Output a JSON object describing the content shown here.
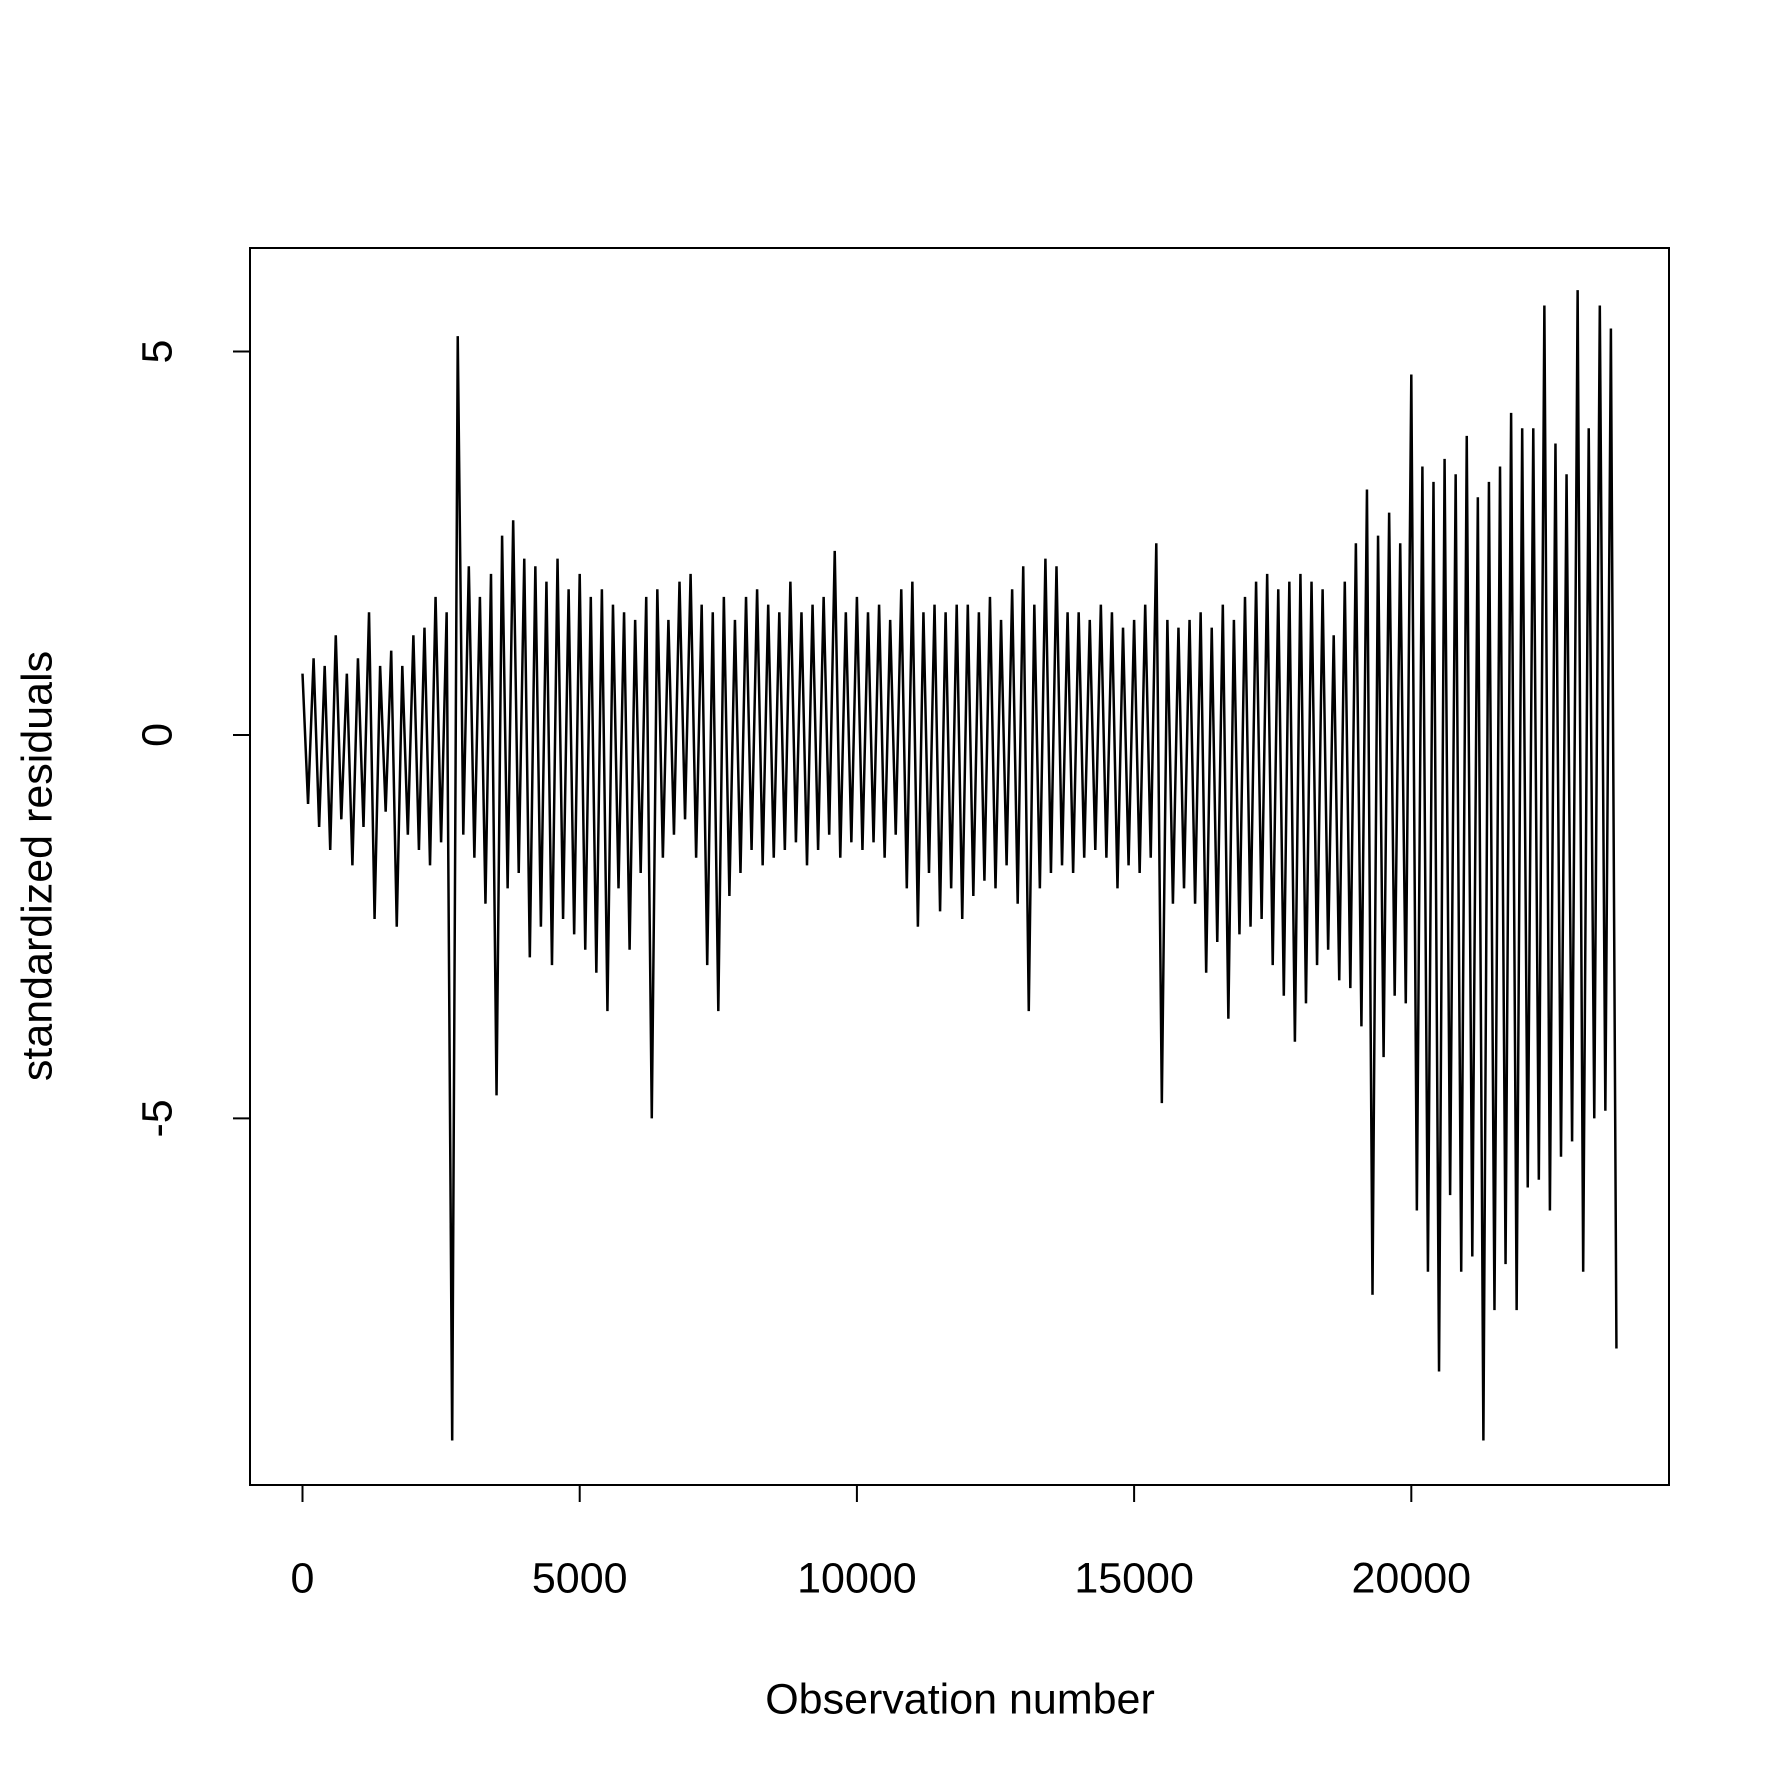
{
  "chart_data": {
    "type": "line",
    "x_label": "Observation number",
    "y_label": "standardized residuals",
    "color": "#000000",
    "xlim": [
      -947,
      24648
    ],
    "xticks": [
      0,
      5000,
      10000,
      15000,
      20000
    ],
    "ylim": [
      -9.78,
      6.35
    ],
    "yticks": [
      -5,
      0,
      5
    ],
    "grid": false,
    "x": [
      0,
      100,
      200,
      300,
      400,
      500,
      600,
      700,
      800,
      900,
      1000,
      1100,
      1200,
      1300,
      1400,
      1500,
      1600,
      1700,
      1800,
      1900,
      2000,
      2100,
      2200,
      2300,
      2400,
      2500,
      2600,
      2700,
      2800,
      2900,
      3000,
      3100,
      3200,
      3300,
      3400,
      3500,
      3600,
      3700,
      3800,
      3900,
      4000,
      4100,
      4200,
      4300,
      4400,
      4500,
      4600,
      4700,
      4800,
      4900,
      5000,
      5100,
      5200,
      5300,
      5400,
      5500,
      5600,
      5700,
      5800,
      5900,
      6000,
      6100,
      6200,
      6300,
      6400,
      6500,
      6600,
      6700,
      6800,
      6900,
      7000,
      7100,
      7200,
      7300,
      7400,
      7500,
      7600,
      7700,
      7800,
      7900,
      8000,
      8100,
      8200,
      8300,
      8400,
      8500,
      8600,
      8700,
      8800,
      8900,
      9000,
      9100,
      9200,
      9300,
      9400,
      9500,
      9600,
      9700,
      9800,
      9900,
      10000,
      10100,
      10200,
      10300,
      10400,
      10500,
      10600,
      10700,
      10800,
      10900,
      11000,
      11100,
      11200,
      11300,
      11400,
      11500,
      11600,
      11700,
      11800,
      11900,
      12000,
      12100,
      12200,
      12300,
      12400,
      12500,
      12600,
      12700,
      12800,
      12900,
      13000,
      13100,
      13200,
      13300,
      13400,
      13500,
      13600,
      13700,
      13800,
      13900,
      14000,
      14100,
      14200,
      14300,
      14400,
      14500,
      14600,
      14700,
      14800,
      14900,
      15000,
      15100,
      15200,
      15300,
      15400,
      15500,
      15600,
      15700,
      15800,
      15900,
      16000,
      16100,
      16200,
      16300,
      16400,
      16500,
      16600,
      16700,
      16800,
      16900,
      17000,
      17100,
      17200,
      17300,
      17400,
      17500,
      17600,
      17700,
      17800,
      17900,
      18000,
      18100,
      18200,
      18300,
      18400,
      18500,
      18600,
      18700,
      18800,
      18900,
      19000,
      19100,
      19200,
      19300,
      19400,
      19500,
      19600,
      19700,
      19800,
      19900,
      20000,
      20100,
      20200,
      20300,
      20400,
      20500,
      20600,
      20700,
      20800,
      20900,
      21000,
      21100,
      21200,
      21300,
      21400,
      21500,
      21600,
      21700,
      21800,
      21900,
      22000,
      22100,
      22200,
      22300,
      22400,
      22500,
      22600,
      22700,
      22800,
      22900,
      23000,
      23100,
      23200,
      23300,
      23400,
      23500,
      23600,
      23700
    ],
    "values": [
      0.8,
      -0.9,
      1.0,
      -1.2,
      0.9,
      -1.5,
      1.3,
      -1.1,
      0.8,
      -1.7,
      1.0,
      -1.2,
      1.6,
      -2.4,
      0.9,
      -1.0,
      1.1,
      -2.5,
      0.9,
      -1.3,
      1.3,
      -1.5,
      1.4,
      -1.7,
      1.8,
      -1.4,
      1.6,
      -9.2,
      5.2,
      -1.3,
      2.2,
      -1.6,
      1.8,
      -2.2,
      2.1,
      -4.7,
      2.6,
      -2.0,
      2.8,
      -1.8,
      2.3,
      -2.9,
      2.2,
      -2.5,
      2.0,
      -3.0,
      2.3,
      -2.4,
      1.9,
      -2.6,
      2.1,
      -2.8,
      1.8,
      -3.1,
      1.9,
      -3.6,
      1.7,
      -2.0,
      1.6,
      -2.8,
      1.5,
      -1.8,
      1.8,
      -5.0,
      1.9,
      -1.6,
      1.5,
      -1.3,
      2.0,
      -1.1,
      2.1,
      -1.6,
      1.7,
      -3.0,
      1.6,
      -3.6,
      1.8,
      -2.1,
      1.5,
      -1.8,
      1.8,
      -1.5,
      1.9,
      -1.7,
      1.7,
      -1.6,
      1.6,
      -1.5,
      2.0,
      -1.4,
      1.6,
      -1.7,
      1.7,
      -1.5,
      1.8,
      -1.3,
      2.4,
      -1.6,
      1.6,
      -1.4,
      1.8,
      -1.5,
      1.6,
      -1.4,
      1.7,
      -1.6,
      1.5,
      -1.3,
      1.9,
      -2.0,
      2.0,
      -2.5,
      1.6,
      -1.8,
      1.7,
      -2.3,
      1.6,
      -2.0,
      1.7,
      -2.4,
      1.7,
      -2.1,
      1.6,
      -1.9,
      1.8,
      -2.0,
      1.5,
      -1.7,
      1.9,
      -2.2,
      2.2,
      -3.6,
      1.7,
      -2.0,
      2.3,
      -1.8,
      2.2,
      -1.7,
      1.6,
      -1.8,
      1.6,
      -1.6,
      1.5,
      -1.5,
      1.7,
      -1.6,
      1.6,
      -2.0,
      1.4,
      -1.7,
      1.5,
      -1.8,
      1.7,
      -1.6,
      2.5,
      -4.8,
      1.5,
      -2.2,
      1.4,
      -2.0,
      1.5,
      -2.2,
      1.6,
      -3.1,
      1.4,
      -2.7,
      1.7,
      -3.7,
      1.5,
      -2.6,
      1.8,
      -2.5,
      2.0,
      -2.4,
      2.1,
      -3.0,
      1.9,
      -3.4,
      2.0,
      -4.0,
      2.1,
      -3.5,
      2.0,
      -3.0,
      1.9,
      -2.8,
      1.3,
      -3.2,
      2.0,
      -3.3,
      2.5,
      -3.8,
      3.2,
      -7.3,
      2.6,
      -4.2,
      2.9,
      -3.4,
      2.5,
      -3.5,
      4.7,
      -6.2,
      3.5,
      -7.0,
      3.3,
      -8.3,
      3.6,
      -6.0,
      3.4,
      -7.0,
      3.9,
      -6.8,
      3.1,
      -9.2,
      3.3,
      -7.5,
      3.5,
      -6.9,
      4.2,
      -7.5,
      4.0,
      -5.9,
      4.0,
      -5.8,
      5.6,
      -6.2,
      3.8,
      -5.5,
      3.4,
      -5.3,
      5.8,
      -7.0,
      4.0,
      -5.0,
      5.6,
      -4.9,
      5.3,
      -8.0
    ]
  }
}
